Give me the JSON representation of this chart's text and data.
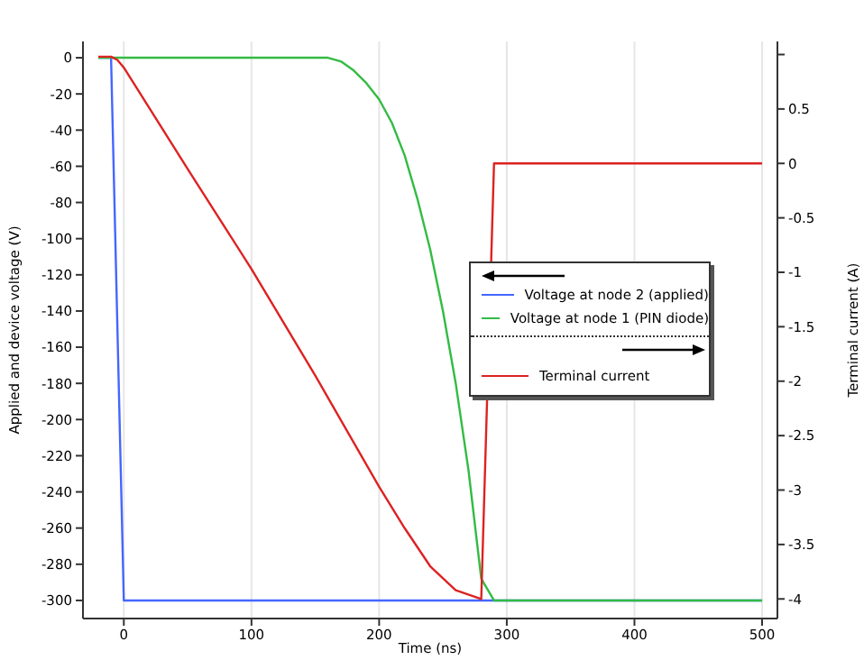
{
  "chart_data": {
    "type": "line",
    "xlabel": "Time (ns)",
    "ylabel": "Applied and device voltage (V)",
    "y2label": "Terminal current (A)",
    "xlim": [
      -32,
      512
    ],
    "xticks": [
      0,
      100,
      200,
      300,
      400,
      500
    ],
    "ylim": [
      -310,
      9
    ],
    "yticks": [
      0,
      -20,
      -40,
      -60,
      -80,
      -100,
      -120,
      -140,
      -160,
      -180,
      -200,
      -220,
      -240,
      -260,
      -280,
      -300
    ],
    "y2lim": [
      -4.18,
      1.12
    ],
    "y2ticks": [
      {
        "value": 1,
        "label": null
      },
      0.5,
      0,
      -0.5,
      -1,
      -1.5,
      -2,
      -2.5,
      -3,
      -3.5,
      -4
    ],
    "grid": true,
    "legend": "right",
    "marker": "none",
    "line_style": "solid",
    "series": [
      {
        "name": "Voltage at node 2 (applied)",
        "color": "#4466ff",
        "x": [
          -20,
          -10,
          0,
          500
        ],
        "values": [
          0,
          0,
          -300,
          -300
        ]
      },
      {
        "name": "Voltage at node 1 (PIN diode)",
        "color": "#33bb44",
        "x": [
          -20,
          160,
          170,
          180,
          190,
          200,
          210,
          220,
          230,
          240,
          250,
          260,
          270,
          280,
          290,
          500
        ],
        "values": [
          0,
          0,
          -2,
          -7,
          -14,
          -23,
          -36,
          -54,
          -78,
          -106,
          -140,
          -180,
          -228,
          -288,
          -300,
          -300
        ]
      },
      {
        "name": "Terminal current",
        "color": "#dd2222",
        "axis": "y2",
        "x": [
          -20,
          -10,
          -5,
          0,
          50,
          100,
          150,
          200,
          220,
          240,
          260,
          280,
          290,
          500
        ],
        "values": [
          0.98,
          0.98,
          0.95,
          0.88,
          -0.05,
          -0.97,
          -1.95,
          -2.97,
          -3.35,
          -3.7,
          -3.92,
          -4.0,
          0,
          0
        ]
      }
    ]
  }
}
